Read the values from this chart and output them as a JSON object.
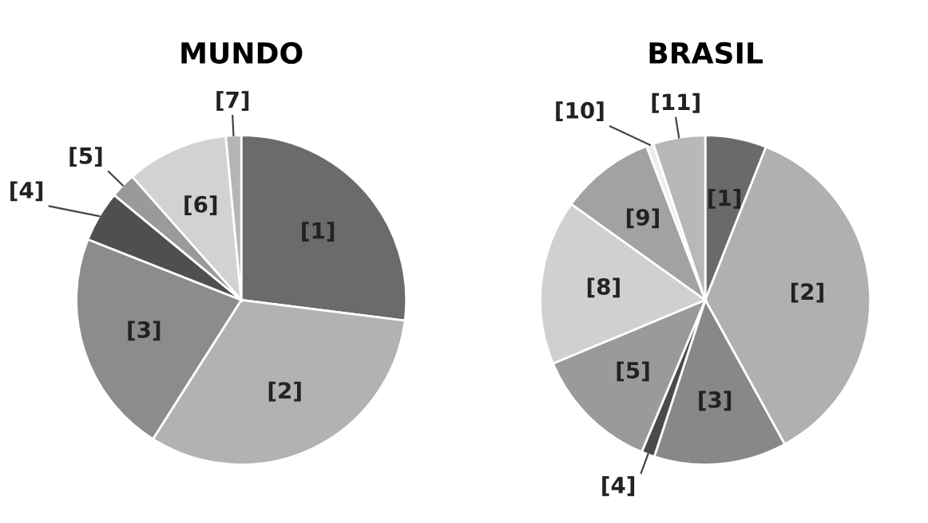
{
  "chart_data": [
    {
      "type": "pie",
      "title": "MUNDO",
      "categories": [
        "[1]",
        "[2]",
        "[3]",
        "[4]",
        "[5]",
        "[6]",
        "[7]"
      ],
      "values": [
        27,
        32,
        22,
        5,
        2.5,
        10,
        1.5
      ],
      "colors": [
        "#6b6b6b",
        "#b2b2b2",
        "#8c8c8c",
        "#4f4f4f",
        "#9a9a9a",
        "#d2d2d2",
        "#b5b5b5"
      ]
    },
    {
      "type": "pie",
      "title": "BRASIL",
      "categories": [
        "[1]",
        "[2]",
        "[3]",
        "[4]",
        "[5]",
        "[8]",
        "[9]",
        "[10]",
        "[11]"
      ],
      "values": [
        6,
        36,
        13,
        1.3,
        12.4,
        16.2,
        9.3,
        0.7,
        5.1
      ],
      "colors": [
        "#6a6a6a",
        "#b0b0b0",
        "#888888",
        "#4a4a4a",
        "#9a9a9a",
        "#d0d0d0",
        "#a2a2a2",
        "#eeeeee",
        "#b8b8b8"
      ]
    }
  ]
}
